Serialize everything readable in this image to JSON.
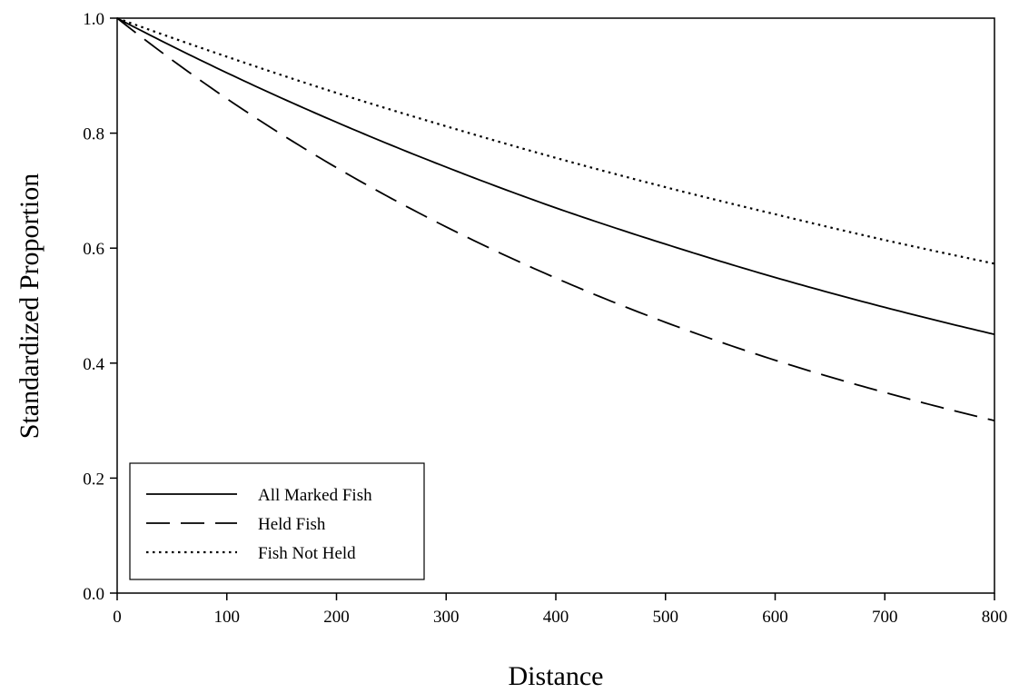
{
  "chart_data": {
    "type": "line",
    "title": "",
    "xlabel": "Distance",
    "ylabel": "Standardized Proportion",
    "xlim": [
      0,
      800
    ],
    "ylim": [
      0,
      1.0
    ],
    "x_ticks": [
      "0",
      "100",
      "200",
      "300",
      "400",
      "500",
      "600",
      "700",
      "800"
    ],
    "y_ticks": [
      "0.0",
      "0.2",
      "0.4",
      "0.6",
      "0.8",
      "1.0"
    ],
    "grid": false,
    "legend_position": "bottom-left",
    "x": [
      0,
      100,
      200,
      300,
      400,
      500,
      600,
      700,
      800
    ],
    "series": [
      {
        "name": "All Marked Fish",
        "style": "solid",
        "values": [
          1.0,
          0.905,
          0.819,
          0.741,
          0.67,
          0.607,
          0.549,
          0.497,
          0.45
        ]
      },
      {
        "name": "Held Fish",
        "style": "dashed",
        "values": [
          1.0,
          0.86,
          0.74,
          0.637,
          0.548,
          0.471,
          0.405,
          0.349,
          0.3
        ]
      },
      {
        "name": "Fish Not Held",
        "style": "dotted",
        "values": [
          1.0,
          0.933,
          0.87,
          0.812,
          0.757,
          0.706,
          0.659,
          0.614,
          0.573
        ]
      }
    ],
    "colors": {
      "line": "#000000",
      "axis": "#000000",
      "background": "#ffffff"
    }
  }
}
